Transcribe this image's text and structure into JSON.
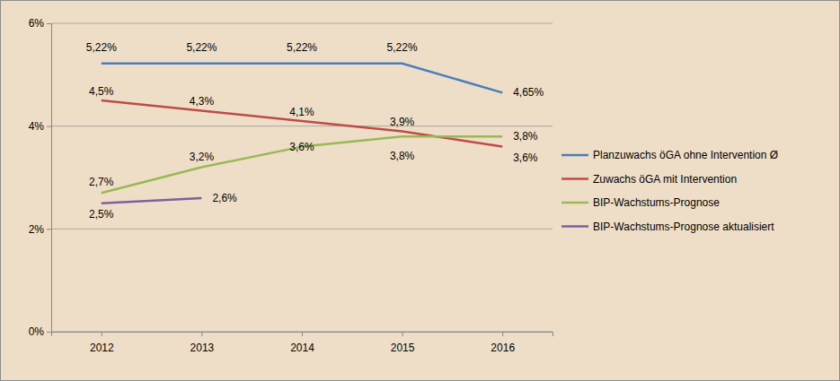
{
  "chart_data": {
    "type": "line",
    "categories": [
      "2012",
      "2013",
      "2014",
      "2015",
      "2016"
    ],
    "ylim": [
      0,
      6
    ],
    "yticks": [
      {
        "value": 0,
        "label": "0%"
      },
      {
        "value": 2,
        "label": "2%"
      },
      {
        "value": 4,
        "label": "4%"
      },
      {
        "value": 6,
        "label": "6%"
      }
    ],
    "grid": true,
    "legend": "right",
    "data_labels": true,
    "series": [
      {
        "name": "Planzuwachs öGA ohne Intervention Ø",
        "color": "#4a7ebb",
        "values": [
          5.22,
          5.22,
          5.22,
          5.22,
          4.65
        ],
        "value_labels": [
          "5,22%",
          "5,22%",
          "5,22%",
          "5,22%",
          "4,65%"
        ]
      },
      {
        "name": "Zuwachs öGA mit Intervention",
        "color": "#be4b48",
        "values": [
          4.5,
          4.3,
          4.1,
          3.9,
          3.6
        ],
        "value_labels": [
          "4,5%",
          "4,3%",
          "4,1%",
          "3,9%",
          "3,6%"
        ]
      },
      {
        "name": "BIP-Wachstums-Prognose",
        "color": "#98b954",
        "values": [
          2.7,
          3.2,
          3.6,
          3.8,
          3.8
        ],
        "value_labels": [
          "2,7%",
          "3,2%",
          "3,6%",
          "3,8%",
          "3,8%"
        ]
      },
      {
        "name": "BIP-Wachstums-Prognose aktualisiert",
        "color": "#7d60a0",
        "values": [
          2.5,
          2.6,
          null,
          null,
          null
        ],
        "value_labels": [
          "2,5%",
          "2,6%",
          null,
          null,
          null
        ]
      }
    ]
  }
}
